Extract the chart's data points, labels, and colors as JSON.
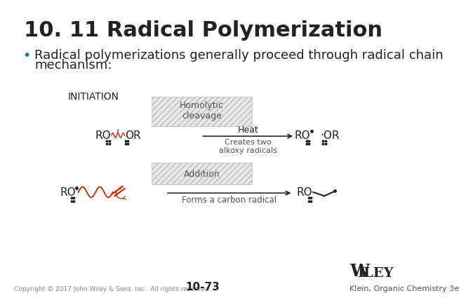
{
  "title": "10. 11 Radical Polymerization",
  "bullet": "•",
  "bullet_line1": "Radical polymerizations generally proceed through radical chain",
  "bullet_line2": "mechanism:",
  "initiation_label": "INITIATION",
  "box1_text": "Homolytic\ncleavage",
  "arrow1_top": "Heat",
  "arrow1_bottom": "Creates two\nalkoxy radicals",
  "box2_text": "Addition",
  "arrow2_label": "Forms a carbon radical",
  "copyright": "Copyright © 2017 John Wiley & Sons, Inc.  All rights reserved.",
  "page_num": "10-73",
  "klein": "Klein, Organic Chemistry 3e",
  "bg_color": "#ffffff",
  "dark": "#222222",
  "gray": "#555555",
  "lgray": "#888888",
  "red": "#cc2200",
  "box_fill": "#e8e8e8",
  "box_edge": "#bbbbbb"
}
